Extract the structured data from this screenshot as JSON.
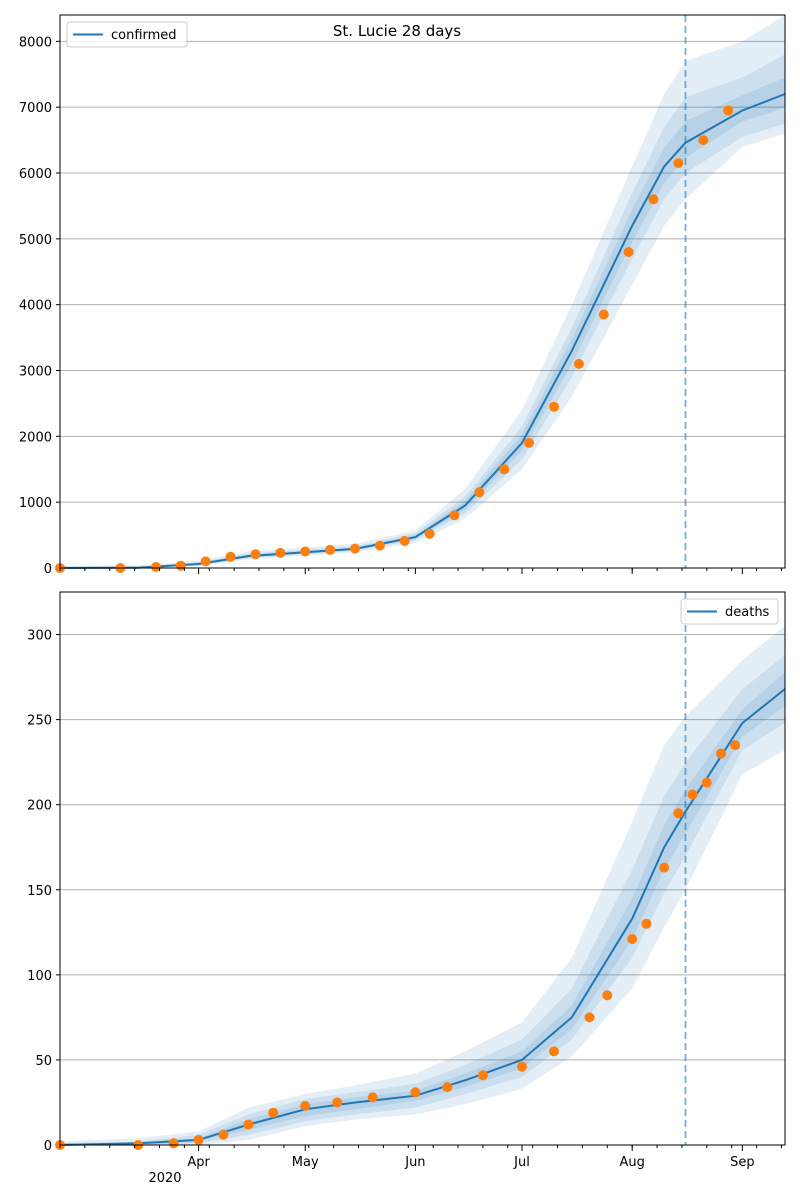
{
  "title": "St. Lucie 28 days",
  "colors": {
    "model": "#1f77b4",
    "observed": "#ff7f0e",
    "grid": "#b0b0b0",
    "band": "#1f77b4"
  },
  "x_axis": {
    "start": "2020-02-22",
    "end": "2020-09-13",
    "month_ticks": [
      {
        "date": "2020-04-01",
        "label": "Apr"
      },
      {
        "date": "2020-05-01",
        "label": "May"
      },
      {
        "date": "2020-06-01",
        "label": "Jun"
      },
      {
        "date": "2020-07-01",
        "label": "Jul"
      },
      {
        "date": "2020-08-01",
        "label": "Aug"
      },
      {
        "date": "2020-09-01",
        "label": "Sep"
      }
    ],
    "year_label": "2020",
    "forecast_date": "2020-08-16"
  },
  "chart_data": [
    {
      "type": "line",
      "legend": "confirmed",
      "legend_position": "top-left",
      "grid": "horizontal",
      "ylim": [
        0,
        8400
      ],
      "yticks": [
        0,
        1000,
        2000,
        3000,
        4000,
        5000,
        6000,
        7000,
        8000
      ],
      "model": {
        "name": "confirmed",
        "x": [
          "2020-02-22",
          "2020-03-15",
          "2020-04-01",
          "2020-04-15",
          "2020-05-01",
          "2020-05-15",
          "2020-06-01",
          "2020-06-15",
          "2020-07-01",
          "2020-07-15",
          "2020-08-01",
          "2020-08-10",
          "2020-08-16",
          "2020-09-01",
          "2020-09-13"
        ],
        "y": [
          0,
          5,
          60,
          180,
          240,
          290,
          470,
          950,
          1900,
          3300,
          5200,
          6100,
          6460,
          6950,
          7200
        ],
        "bands": [
          {
            "lower": [
              0,
              0,
              30,
              130,
              190,
              240,
              380,
              750,
              1500,
              2600,
              4300,
              5200,
              5600,
              6400,
              6600
            ],
            "upper": [
              30,
              40,
              110,
              250,
              310,
              370,
              570,
              1200,
              2400,
              4000,
              6100,
              7200,
              7700,
              8000,
              8400
            ]
          },
          {
            "lower": [
              0,
              2,
              40,
              150,
              210,
              260,
              420,
              830,
              1650,
              2900,
              4700,
              5600,
              6000,
              6550,
              6750
            ],
            "upper": [
              20,
              25,
              90,
              220,
              280,
              330,
              530,
              1080,
              2150,
              3650,
              5700,
              6700,
              7150,
              7450,
              7800
            ]
          },
          {
            "lower": [
              0,
              3,
              50,
              165,
              225,
              275,
              445,
              890,
              1780,
              3100,
              4950,
              5850,
              6230,
              6780,
              6990
            ],
            "upper": [
              10,
              12,
              75,
              200,
              260,
              310,
              500,
              1020,
              2030,
              3480,
              5450,
              6380,
              6790,
              7180,
              7450
            ]
          }
        ]
      },
      "observed": {
        "x": [
          "2020-02-22",
          "2020-03-10",
          "2020-03-20",
          "2020-03-27",
          "2020-04-03",
          "2020-04-10",
          "2020-04-17",
          "2020-04-24",
          "2020-05-01",
          "2020-05-08",
          "2020-05-15",
          "2020-05-22",
          "2020-05-29",
          "2020-06-05",
          "2020-06-12",
          "2020-06-19",
          "2020-06-26",
          "2020-07-03",
          "2020-07-10",
          "2020-07-17",
          "2020-07-24",
          "2020-07-31",
          "2020-08-07",
          "2020-08-14",
          "2020-08-21",
          "2020-08-28"
        ],
        "y": [
          0,
          0,
          15,
          35,
          100,
          170,
          210,
          230,
          250,
          275,
          295,
          340,
          410,
          520,
          800,
          1150,
          1500,
          1900,
          2450,
          3100,
          3850,
          4800,
          5600,
          6150,
          6500,
          6950
        ]
      }
    },
    {
      "type": "line",
      "legend": "deaths",
      "legend_position": "top-right",
      "grid": "horizontal",
      "ylim": [
        0,
        325
      ],
      "yticks": [
        0,
        50,
        100,
        150,
        200,
        250,
        300
      ],
      "model": {
        "name": "deaths",
        "x": [
          "2020-02-22",
          "2020-03-15",
          "2020-04-01",
          "2020-04-15",
          "2020-05-01",
          "2020-05-15",
          "2020-06-01",
          "2020-06-15",
          "2020-07-01",
          "2020-07-15",
          "2020-08-01",
          "2020-08-10",
          "2020-08-16",
          "2020-09-01",
          "2020-09-13"
        ],
        "y": [
          0,
          1,
          3,
          12,
          21,
          25,
          29,
          38,
          50,
          75,
          133,
          175,
          196,
          248,
          268
        ],
        "bands": [
          {
            "lower": [
              0,
              0,
              0,
              3,
              11,
              15,
              18,
              24,
              33,
              52,
              92,
              128,
              150,
              218,
              232
            ],
            "upper": [
              2,
              4,
              8,
              22,
              30,
              35,
              42,
              55,
              72,
              110,
              190,
              235,
              252,
              285,
              305
            ]
          },
          {
            "lower": [
              0,
              0,
              1,
              6,
              14,
              18,
              22,
              30,
              40,
              62,
              110,
              148,
              170,
              232,
              248
            ],
            "upper": [
              1,
              2,
              6,
              18,
              27,
              31,
              36,
              47,
              62,
              92,
              162,
              205,
              225,
              268,
              288
            ]
          },
          {
            "lower": [
              0,
              0,
              2,
              9,
              17,
              21,
              26,
              34,
              45,
              68,
              121,
              162,
              183,
              240,
              258
            ],
            "upper": [
              1,
              1,
              4,
              15,
              24,
              28,
              32,
              42,
              55,
              82,
              145,
              188,
              209,
              256,
              278
            ]
          }
        ]
      },
      "observed": {
        "x": [
          "2020-02-22",
          "2020-03-15",
          "2020-03-25",
          "2020-04-01",
          "2020-04-08",
          "2020-04-15",
          "2020-04-22",
          "2020-05-01",
          "2020-05-10",
          "2020-05-20",
          "2020-06-01",
          "2020-06-10",
          "2020-06-20",
          "2020-07-01",
          "2020-07-10",
          "2020-07-20",
          "2020-07-25",
          "2020-08-01",
          "2020-08-05",
          "2020-08-10",
          "2020-08-14",
          "2020-08-18",
          "2020-08-22",
          "2020-08-26",
          "2020-08-30"
        ],
        "y": [
          0,
          0,
          1,
          3,
          6,
          12,
          19,
          23,
          25,
          28,
          31,
          34,
          41,
          46,
          55,
          75,
          88,
          121,
          130,
          163,
          195,
          206,
          213,
          230,
          235
        ]
      }
    }
  ]
}
